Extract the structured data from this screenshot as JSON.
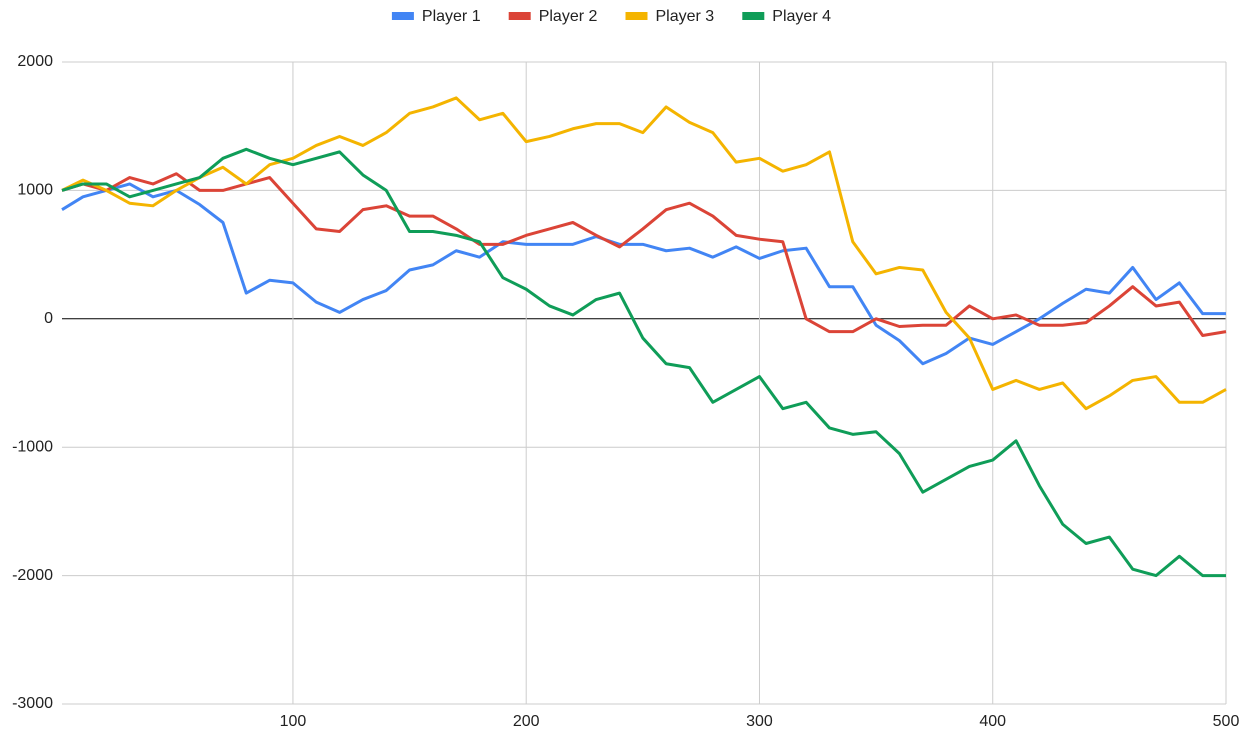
{
  "chart_data": {
    "type": "line",
    "x": [
      1,
      10,
      20,
      30,
      40,
      50,
      60,
      70,
      80,
      90,
      100,
      110,
      120,
      130,
      140,
      150,
      160,
      170,
      180,
      190,
      200,
      210,
      220,
      230,
      240,
      250,
      260,
      270,
      280,
      290,
      300,
      310,
      320,
      330,
      340,
      350,
      360,
      370,
      380,
      390,
      400,
      410,
      420,
      430,
      440,
      450,
      460,
      470,
      480,
      490,
      500
    ],
    "series": [
      {
        "name": "Player 1",
        "color": "#4285f4",
        "values": [
          850,
          950,
          1000,
          1050,
          950,
          1000,
          890,
          750,
          200,
          300,
          280,
          130,
          50,
          150,
          220,
          380,
          420,
          530,
          480,
          600,
          580,
          580,
          580,
          640,
          580,
          580,
          530,
          550,
          480,
          560,
          470,
          530,
          550,
          250,
          250,
          -50,
          -170,
          -350,
          -270,
          -150,
          -200,
          -100,
          0,
          120,
          230,
          200,
          400,
          150,
          280,
          40,
          40
        ]
      },
      {
        "name": "Player 2",
        "color": "#db4437",
        "values": [
          1000,
          1050,
          1000,
          1100,
          1050,
          1130,
          1000,
          1000,
          1050,
          1100,
          900,
          700,
          680,
          850,
          880,
          800,
          800,
          700,
          580,
          580,
          650,
          700,
          750,
          650,
          560,
          700,
          850,
          900,
          800,
          650,
          620,
          600,
          0,
          -100,
          -100,
          0,
          -60,
          -50,
          -50,
          100,
          0,
          30,
          -50,
          -50,
          -30,
          100,
          250,
          100,
          130,
          -130,
          -100
        ]
      },
      {
        "name": "Player 3",
        "color": "#f4b400",
        "values": [
          1000,
          1080,
          1000,
          900,
          880,
          1000,
          1100,
          1180,
          1050,
          1200,
          1250,
          1350,
          1420,
          1350,
          1450,
          1600,
          1650,
          1720,
          1550,
          1600,
          1380,
          1420,
          1480,
          1520,
          1520,
          1450,
          1650,
          1530,
          1450,
          1220,
          1250,
          1150,
          1200,
          1300,
          600,
          350,
          400,
          380,
          50,
          -150,
          -550,
          -480,
          -550,
          -500,
          -700,
          -600,
          -480,
          -450,
          -650,
          -650,
          -550
        ]
      },
      {
        "name": "Player 4",
        "color": "#0f9d58",
        "values": [
          1000,
          1050,
          1050,
          950,
          1000,
          1050,
          1100,
          1250,
          1320,
          1250,
          1200,
          1250,
          1300,
          1120,
          1000,
          680,
          680,
          650,
          600,
          320,
          230,
          100,
          30,
          150,
          200,
          -150,
          -350,
          -380,
          -650,
          -550,
          -450,
          -700,
          -650,
          -850,
          -900,
          -880,
          -1050,
          -1350,
          -1250,
          -1150,
          -1100,
          -950,
          -1300,
          -1600,
          -1750,
          -1700,
          -1950,
          -2000,
          -1850,
          -2000,
          -2000
        ]
      }
    ],
    "xlim": [
      1,
      500
    ],
    "xticks": [
      100,
      200,
      300,
      400,
      500
    ],
    "ylim": [
      -3000,
      2000
    ],
    "yticks": [
      -3000,
      -2000,
      -1000,
      0,
      1000,
      2000
    ],
    "grid": true,
    "legend": "top"
  }
}
